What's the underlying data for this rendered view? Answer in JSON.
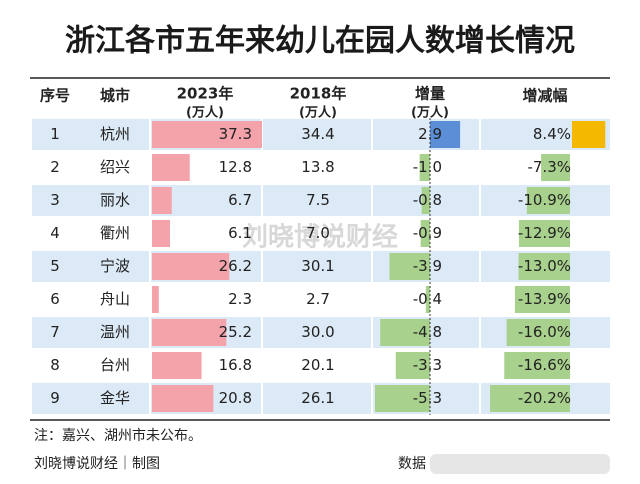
{
  "title": "浙江各市五年来幼儿在园人数增长情况",
  "table": {
    "header": [
      [
        "序号"
      ],
      [
        "城市"
      ],
      [
        "2023年",
        "(万人)"
      ],
      [
        "2018年",
        "(万人)"
      ],
      [
        "增量",
        "(万人)"
      ],
      [
        "增减幅"
      ]
    ],
    "rows": [
      [
        "1",
        "杭州",
        "37.3",
        "34.4",
        "2.9",
        "8.4%"
      ],
      [
        "2",
        "绍兴",
        "12.8",
        "13.8",
        "-1.0",
        "-7.3%"
      ],
      [
        "3",
        "丽水",
        "6.7",
        "7.5",
        "-0.8",
        "-10.9%"
      ],
      [
        "4",
        "衢州",
        "6.1",
        "7.0",
        "-0.9",
        "-12.9%"
      ],
      [
        "5",
        "宁波",
        "26.2",
        "30.1",
        "-3.9",
        "-13.0%"
      ],
      [
        "6",
        "舟山",
        "2.3",
        "2.7",
        "-0.4",
        "-13.9%"
      ],
      [
        "7",
        "温州",
        "25.2",
        "30.0",
        "-4.8",
        "-16.0%"
      ],
      [
        "8",
        "台州",
        "16.8",
        "20.1",
        "-3.3",
        "-16.6%"
      ],
      [
        "9",
        "金华",
        "20.8",
        "26.1",
        "-5.3",
        "-20.2%"
      ]
    ]
  },
  "note": "注：嘉兴、湖州市未公布。",
  "watermark": "刘晓博说财经",
  "footer": {
    "source": "刘晓博说财经｜制图",
    "data": "数据"
  }
}
